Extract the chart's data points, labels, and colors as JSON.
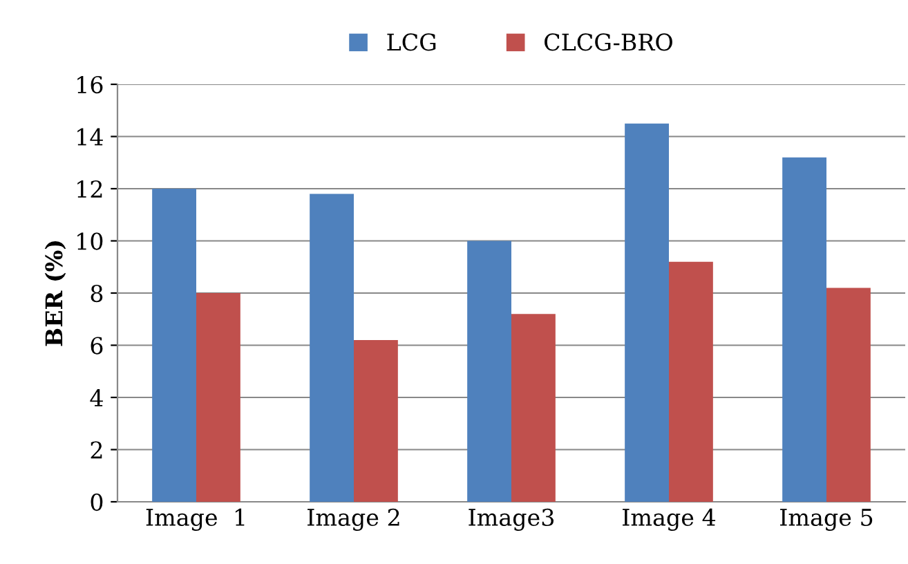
{
  "chart_data": {
    "type": "bar",
    "ylabel": "BER (%)",
    "categories": [
      "Image  1",
      "Image 2",
      "Image3",
      "Image 4",
      "Image 5"
    ],
    "series": [
      {
        "name": "LCG",
        "color": "#4f81bd",
        "values": [
          12,
          11.8,
          10,
          14.5,
          13.2
        ]
      },
      {
        "name": "CLCG-BRO",
        "color": "#c0504d",
        "values": [
          8,
          6.2,
          7.2,
          9.2,
          8.2
        ]
      }
    ],
    "ylim": [
      0,
      16
    ],
    "yticks": [
      0,
      2,
      4,
      6,
      8,
      10,
      12,
      14,
      16
    ],
    "grid": "y",
    "legend": "top"
  }
}
